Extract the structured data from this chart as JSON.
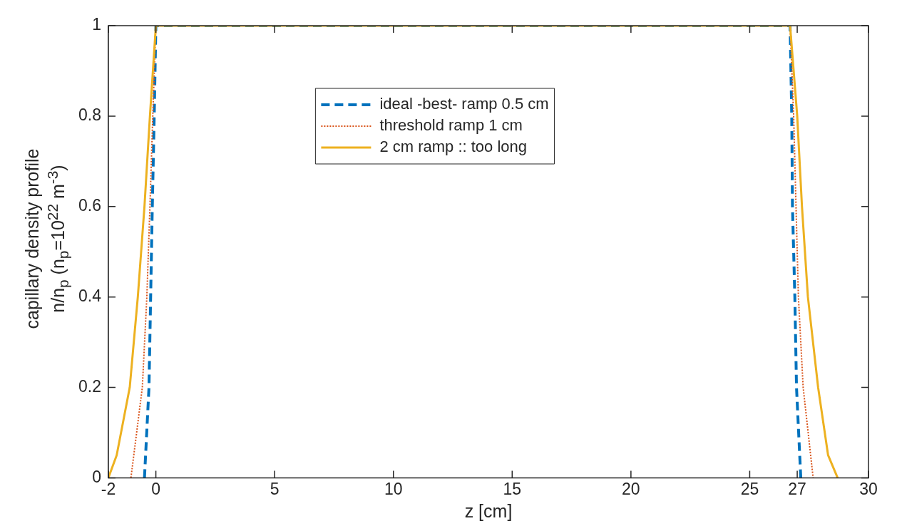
{
  "chart_data": {
    "type": "line",
    "xlabel": "z [cm]",
    "ylabel": "capillary density profile\nn/n$_{p}$ (n$_{p}$=10$^{22}$ m$^{-3}$)",
    "xlim": [
      -2,
      30
    ],
    "xticks": [
      -2,
      0,
      5,
      10,
      15,
      20,
      25,
      27,
      30
    ],
    "ylim": [
      0,
      1
    ],
    "yticks": [
      0,
      0.2,
      0.4,
      0.6,
      0.8,
      1
    ],
    "grid": false,
    "legend": "top",
    "marker": "none",
    "series": [
      {
        "name": "ideal -best- ramp 0.5 cm",
        "color": "#0072bd",
        "line_style": "dashed",
        "x": [
          -0.48,
          -0.29,
          -0.22,
          -0.15,
          -0.07,
          0,
          26.7,
          26.77,
          26.8,
          26.9,
          26.97,
          27.15
        ],
        "values": [
          0,
          0.2,
          0.4,
          0.6,
          0.8,
          1,
          1,
          0.8,
          0.6,
          0.4,
          0.2,
          0
        ]
      },
      {
        "name": "threshold ramp 1 cm",
        "color": "#d95319",
        "line_style": "dotted",
        "x": [
          -1.05,
          -0.57,
          -0.38,
          -0.25,
          -0.13,
          0,
          26.7,
          26.85,
          26.95,
          27.05,
          27.25,
          27.67
        ],
        "values": [
          0,
          0.2,
          0.4,
          0.6,
          0.8,
          1,
          1,
          0.8,
          0.6,
          0.4,
          0.2,
          0
        ]
      },
      {
        "name": "2 cm ramp :: too long",
        "color": "#edb120",
        "line_style": "solid",
        "x": [
          -2,
          -1.65,
          -1.1,
          -0.76,
          -0.48,
          -0.25,
          0,
          26.7,
          27,
          27.2,
          27.45,
          27.88,
          28.3,
          28.7
        ],
        "values": [
          0,
          0.05,
          0.2,
          0.4,
          0.6,
          0.8,
          1,
          1,
          0.8,
          0.6,
          0.4,
          0.2,
          0.05,
          0
        ]
      }
    ]
  }
}
